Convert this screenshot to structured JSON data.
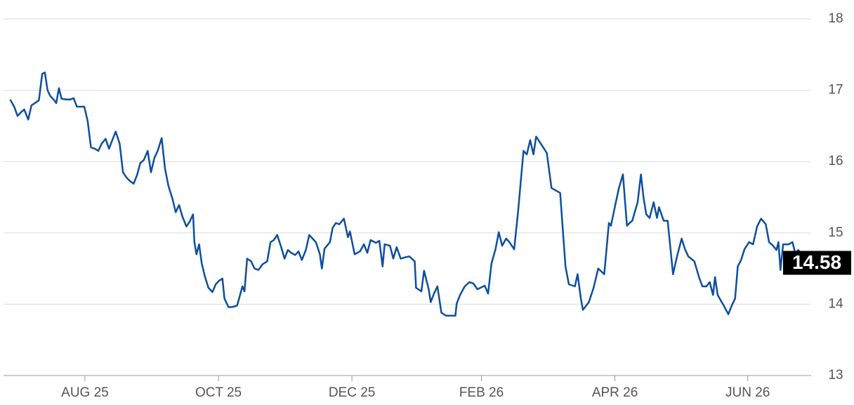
{
  "chart_data": {
    "type": "line",
    "color": "#0d4f9e",
    "grid": true,
    "x": [
      -1.12,
      -1.06,
      -1.01,
      -0.96,
      -0.91,
      -0.85,
      -0.8,
      -0.75,
      -0.69,
      -0.64,
      -0.6,
      -0.56,
      -0.52,
      -0.47,
      -0.43,
      -0.39,
      -0.35,
      -0.27,
      -0.22,
      -0.17,
      -0.12,
      -0.06,
      -0.01,
      0.04,
      0.09,
      0.15,
      0.2,
      0.25,
      0.31,
      0.36,
      0.41,
      0.46,
      0.52,
      0.57,
      0.62,
      0.67,
      0.73,
      0.78,
      0.83,
      0.88,
      0.94,
      0.99,
      1.04,
      1.09,
      1.15,
      1.2,
      1.25,
      1.31,
      1.36,
      1.41,
      1.46,
      1.52,
      1.57,
      1.62,
      1.64,
      1.67,
      1.71,
      1.75,
      1.8,
      1.85,
      1.91,
      1.96,
      2.01,
      2.06,
      2.09,
      2.15,
      2.2,
      2.28,
      2.36,
      2.39,
      2.43,
      2.49,
      2.54,
      2.6,
      2.66,
      2.73,
      2.78,
      2.83,
      2.88,
      2.94,
      2.99,
      3.04,
      3.09,
      3.15,
      3.2,
      3.25,
      3.31,
      3.36,
      3.41,
      3.46,
      3.52,
      3.55,
      3.59,
      3.67,
      3.71,
      3.76,
      3.81,
      3.88,
      3.94,
      3.97,
      4.04,
      4.12,
      4.18,
      4.23,
      4.28,
      4.36,
      4.41,
      4.46,
      4.49,
      4.57,
      4.62,
      4.67,
      4.73,
      4.81,
      4.86,
      4.94,
      4.96,
      5.04,
      5.08,
      5.15,
      5.18,
      5.23,
      5.28,
      5.34,
      5.41,
      5.55,
      5.57,
      5.62,
      5.69,
      5.76,
      5.82,
      5.88,
      5.99,
      6.04,
      6.09,
      6.15,
      6.2,
      6.25,
      6.31,
      6.36,
      6.43,
      6.49,
      6.57,
      6.62,
      6.67,
      6.72,
      6.76,
      6.83,
      6.92,
      6.99,
      7.12,
      7.2,
      7.25,
      7.34,
      7.38,
      7.43,
      7.46,
      7.55,
      7.62,
      7.69,
      7.78,
      7.85,
      7.88,
      7.94,
      8.0,
      8.06,
      8.12,
      8.16,
      8.2,
      8.28,
      8.33,
      8.37,
      8.41,
      8.46,
      8.52,
      8.57,
      8.6,
      8.67,
      8.73,
      8.81,
      8.87,
      8.94,
      8.99,
      9.04,
      9.13,
      9.2,
      9.25,
      9.31,
      9.36,
      9.41,
      9.44,
      9.48,
      9.57,
      9.64,
      9.69,
      9.74,
      9.78,
      9.83,
      9.88,
      9.95,
      10.01,
      10.07,
      10.13,
      10.2,
      10.25,
      10.31,
      10.36,
      10.39,
      10.42,
      10.46,
      10.54,
      10.6,
      10.64,
      10.69,
      10.75,
      10.81
    ],
    "values": [
      16.87,
      16.77,
      16.64,
      16.69,
      16.73,
      16.59,
      16.79,
      16.82,
      16.86,
      17.23,
      17.25,
      17.0,
      16.92,
      16.87,
      16.82,
      17.03,
      16.88,
      16.87,
      16.87,
      16.89,
      16.77,
      16.77,
      16.77,
      16.57,
      16.2,
      16.18,
      16.15,
      16.25,
      16.32,
      16.18,
      16.3,
      16.42,
      16.25,
      15.85,
      15.78,
      15.73,
      15.69,
      15.81,
      15.98,
      16.02,
      16.15,
      15.85,
      16.05,
      16.15,
      16.33,
      15.9,
      15.66,
      15.48,
      15.29,
      15.39,
      15.23,
      15.09,
      15.16,
      15.26,
      14.87,
      14.7,
      14.84,
      14.57,
      14.38,
      14.23,
      14.17,
      14.28,
      14.33,
      14.36,
      14.08,
      13.96,
      13.96,
      13.98,
      14.25,
      14.18,
      14.64,
      14.6,
      14.5,
      14.48,
      14.56,
      14.6,
      14.87,
      14.9,
      14.97,
      14.8,
      14.64,
      14.76,
      14.72,
      14.69,
      14.74,
      14.62,
      14.76,
      14.97,
      14.92,
      14.87,
      14.7,
      14.5,
      14.78,
      14.87,
      15.07,
      15.14,
      15.12,
      15.2,
      14.94,
      15.02,
      14.7,
      14.74,
      14.84,
      14.72,
      14.9,
      14.86,
      14.89,
      14.53,
      14.84,
      14.82,
      14.64,
      14.8,
      14.64,
      14.66,
      14.67,
      14.6,
      14.23,
      14.18,
      14.47,
      14.21,
      14.03,
      14.15,
      14.25,
      13.88,
      13.84,
      13.84,
      14.01,
      14.13,
      14.25,
      14.31,
      14.29,
      14.21,
      14.26,
      14.15,
      14.57,
      14.77,
      15.01,
      14.82,
      14.92,
      14.87,
      14.77,
      15.31,
      16.15,
      16.1,
      16.3,
      16.1,
      16.35,
      16.25,
      16.12,
      15.63,
      15.56,
      14.53,
      14.28,
      14.25,
      14.42,
      14.08,
      13.92,
      14.03,
      14.23,
      14.5,
      14.42,
      15.14,
      15.1,
      15.37,
      15.63,
      15.82,
      15.1,
      15.14,
      15.17,
      15.43,
      15.82,
      15.49,
      15.26,
      15.21,
      15.43,
      15.21,
      15.36,
      15.17,
      15.17,
      14.42,
      14.67,
      14.92,
      14.77,
      14.67,
      14.6,
      14.38,
      14.25,
      14.25,
      14.31,
      14.13,
      14.38,
      14.13,
      13.98,
      13.86,
      13.98,
      14.08,
      14.53,
      14.62,
      14.77,
      14.87,
      14.84,
      15.09,
      15.2,
      15.12,
      14.87,
      14.82,
      14.76,
      14.87,
      14.48,
      14.84,
      14.84,
      14.87,
      14.72,
      14.76,
      14.67,
      14.58
    ],
    "xlim": [
      -1.22,
      10.88
    ],
    "xticks": [
      {
        "value": 0,
        "label": "AUG 25"
      },
      {
        "value": 2.0,
        "label": "OCT 25"
      },
      {
        "value": 4.0,
        "label": "DEC 25"
      },
      {
        "value": 5.94,
        "label": "FEB 26"
      },
      {
        "value": 7.94,
        "label": "APR 26"
      },
      {
        "value": 9.93,
        "label": "JUN 26"
      }
    ],
    "ylim": [
      13,
      18
    ],
    "yticks": [
      13,
      14,
      15,
      16,
      17,
      18
    ]
  }
}
